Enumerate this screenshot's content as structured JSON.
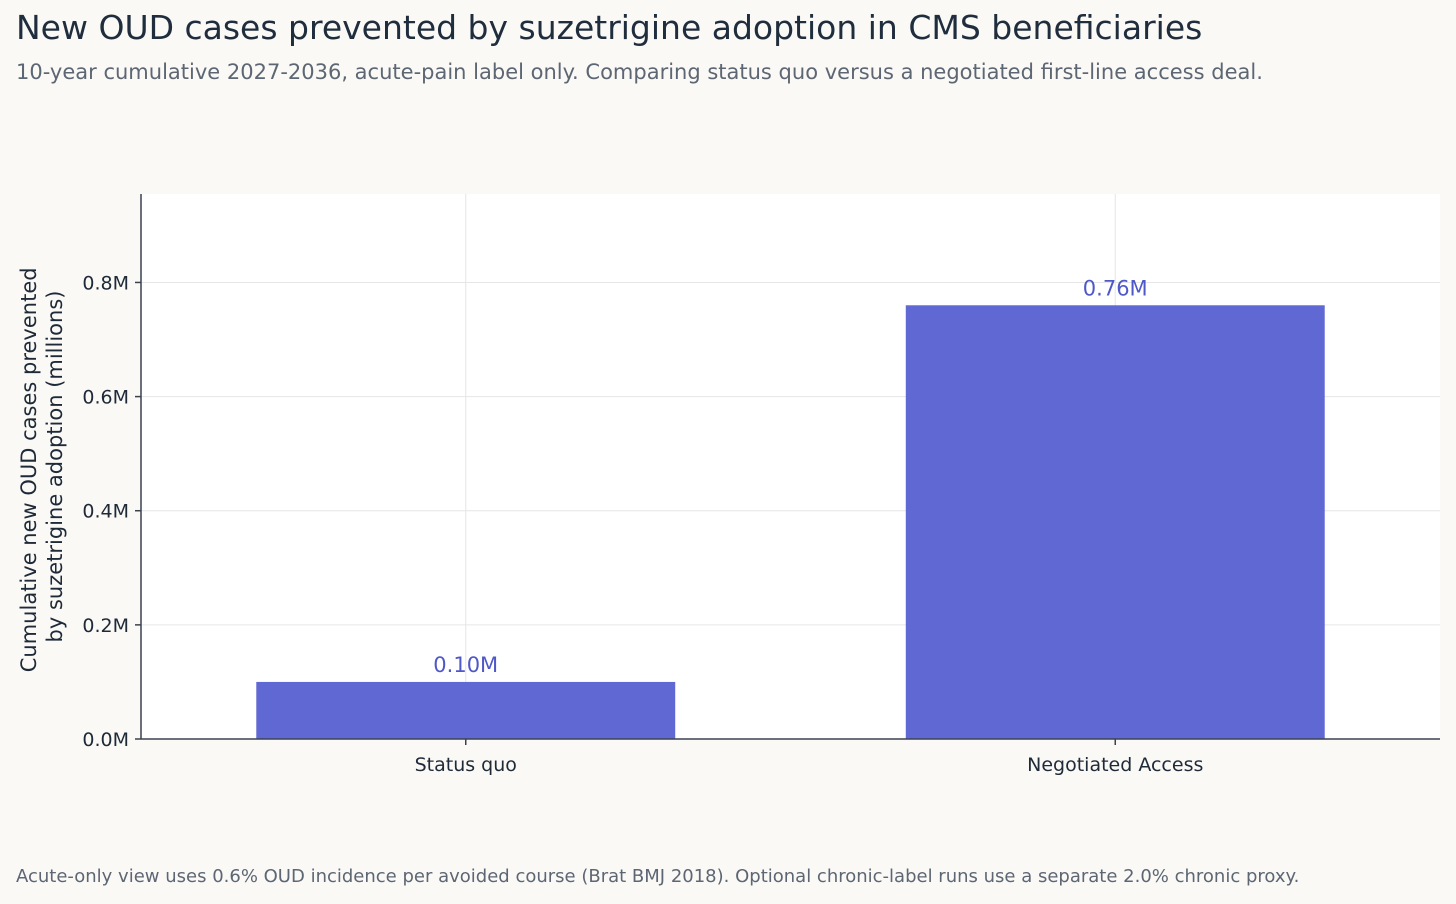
{
  "header": {
    "title": "New OUD cases prevented by suzetrigine adoption in CMS beneficiaries",
    "subtitle": "10-year cumulative 2027-2036, acute-pain label only. Comparing status quo versus a negotiated first-line access deal."
  },
  "footnote": "Acute-only view uses 0.6% OUD incidence per avoided course (Brat BMJ 2018). Optional chronic-label runs use a separate 2.0% chronic proxy.",
  "colors": {
    "bar": "#6068d4",
    "data_label": "#4f58c8",
    "grid": "#e6e6e6",
    "axis": "#3a4250"
  },
  "chart_data": {
    "type": "bar",
    "categories": [
      "Status quo",
      "Negotiated Access"
    ],
    "values": [
      0.1,
      0.76
    ],
    "data_labels": [
      "0.10M",
      "0.76M"
    ],
    "title": "New OUD cases prevented by suzetrigine adoption in CMS beneficiaries",
    "xlabel": "",
    "ylabel_lines": [
      "Cumulative new OUD cases prevented",
      "by suzetrigine adoption (millions)"
    ],
    "ylim": [
      0,
      0.955
    ],
    "yticks": [
      0,
      0.2,
      0.4,
      0.6,
      0.8
    ],
    "ytick_labels": [
      "0.0M",
      "0.2M",
      "0.4M",
      "0.6M",
      "0.8M"
    ],
    "grid": true,
    "legend": "none"
  }
}
